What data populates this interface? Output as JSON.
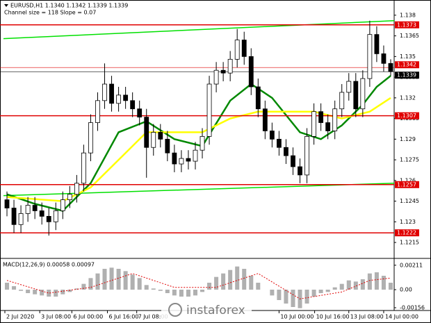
{
  "chart_data": {
    "type": "candlestick",
    "title": "EURUSD,H1  1.1340 1.1342 1.1339 1.1339",
    "subtitle": "Channel size = 118 Slope = 0.07",
    "open": [
      1.1246,
      1.124,
      1.1228,
      1.1236,
      1.1242,
      1.1238,
      1.1234,
      1.123,
      1.1238,
      1.1246,
      1.125,
      1.1258,
      1.128,
      1.1302,
      1.1318,
      1.133,
      1.1316,
      1.1322,
      1.1318,
      1.1312,
      1.1306,
      1.1284,
      1.1295,
      1.129,
      1.128,
      1.1272,
      1.1276,
      1.1274,
      1.1282,
      1.1292,
      1.133,
      1.134,
      1.1338,
      1.1348,
      1.1362,
      1.135,
      1.1328,
      1.1312,
      1.1296,
      1.129,
      1.1284,
      1.1278,
      1.127,
      1.1264,
      1.1292,
      1.131,
      1.1302,
      1.1296,
      1.1312,
      1.1324,
      1.1332,
      1.1312,
      1.1334,
      1.1366,
      1.1352,
      1.1345
    ],
    "high": [
      1.1252,
      1.1246,
      1.1242,
      1.1248,
      1.1248,
      1.1244,
      1.124,
      1.1244,
      1.1252,
      1.1256,
      1.1264,
      1.1286,
      1.1308,
      1.1324,
      1.1345,
      1.1336,
      1.1328,
      1.1328,
      1.1324,
      1.1318,
      1.1312,
      1.1301,
      1.1301,
      1.1296,
      1.1286,
      1.1282,
      1.1282,
      1.1288,
      1.1298,
      1.1336,
      1.1346,
      1.1346,
      1.1354,
      1.137,
      1.1368,
      1.1356,
      1.1334,
      1.1318,
      1.1302,
      1.1296,
      1.129,
      1.1284,
      1.1276,
      1.1298,
      1.1316,
      1.1316,
      1.1308,
      1.1318,
      1.133,
      1.1338,
      1.1338,
      1.134,
      1.1376,
      1.1372,
      1.1358,
      1.1348
    ],
    "low": [
      1.1234,
      1.1222,
      1.1222,
      1.123,
      1.1232,
      1.1228,
      1.122,
      1.1224,
      1.1232,
      1.124,
      1.1244,
      1.1252,
      1.1274,
      1.1296,
      1.1312,
      1.131,
      1.131,
      1.1312,
      1.1306,
      1.13,
      1.1262,
      1.1278,
      1.1284,
      1.1274,
      1.1266,
      1.1266,
      1.1268,
      1.1268,
      1.1276,
      1.1286,
      1.1324,
      1.1332,
      1.1332,
      1.1342,
      1.1344,
      1.1322,
      1.1306,
      1.129,
      1.1284,
      1.1278,
      1.1272,
      1.1264,
      1.1258,
      1.1258,
      1.1286,
      1.1296,
      1.129,
      1.129,
      1.1306,
      1.1318,
      1.1306,
      1.1306,
      1.1328,
      1.1346,
      1.1339,
      1.1336
    ],
    "close": [
      1.124,
      1.1228,
      1.1236,
      1.1242,
      1.1238,
      1.1234,
      1.123,
      1.1238,
      1.1246,
      1.125,
      1.1258,
      1.128,
      1.1302,
      1.1318,
      1.133,
      1.1316,
      1.1322,
      1.1318,
      1.1312,
      1.1306,
      1.1284,
      1.1295,
      1.129,
      1.128,
      1.1272,
      1.1276,
      1.1274,
      1.1282,
      1.1292,
      1.133,
      1.134,
      1.1338,
      1.1348,
      1.1362,
      1.135,
      1.1328,
      1.1312,
      1.1296,
      1.129,
      1.1284,
      1.1278,
      1.127,
      1.1264,
      1.1292,
      1.131,
      1.1302,
      1.1296,
      1.1312,
      1.1324,
      1.1332,
      1.1312,
      1.1334,
      1.1366,
      1.1352,
      1.1345,
      1.1339
    ],
    "xlim": [
      -0.5,
      55.5
    ],
    "xticks": [
      {
        "value": -0.3,
        "label": "2 Jul 2020"
      },
      {
        "value": 4.7,
        "label": "3 Jul 08:00"
      },
      {
        "value": 9.3,
        "label": "6 Jul 00:00"
      },
      {
        "value": 14.4,
        "label": "6 Jul 16:00"
      },
      {
        "value": 18.6,
        "label": "7 Jul 08:00"
      },
      {
        "value": 39,
        "label": "10 Jul 00:00"
      },
      {
        "value": 44.1,
        "label": "10 Jul 16:00"
      },
      {
        "value": 49,
        "label": "13 Jul 08:00"
      },
      {
        "value": 54,
        "label": "14 Jul 00:00"
      }
    ],
    "ylim": [
      1.1211,
      1.1387
    ],
    "yticks": [
      1.1215,
      1.123,
      1.1245,
      1.126,
      1.1275,
      1.129,
      1.1305,
      1.132,
      1.1335,
      1.135,
      1.1365,
      1.138
    ],
    "levels": [
      1.1373,
      1.1307,
      1.1257,
      1.1222
    ],
    "level_color": "#e00000",
    "price_lines": [
      {
        "value": 1.1342,
        "color": "#e00000"
      },
      {
        "value": 1.1339,
        "color": "#000000"
      }
    ],
    "overlays": [
      {
        "color": "#00e000",
        "x": [
          -0.5,
          55.5
        ],
        "values": [
          1.1363,
          1.1376
        ]
      },
      {
        "color": "#00e000",
        "x": [
          -0.5,
          55.5
        ],
        "values": [
          1.1249,
          1.1258
        ]
      },
      {
        "color": "#008800",
        "x": [
          0,
          4,
          8,
          12,
          16,
          20,
          24,
          28,
          32,
          35,
          38,
          42,
          45,
          48,
          51,
          53,
          55
        ],
        "values": [
          1.125,
          1.1243,
          1.1238,
          1.1258,
          1.1295,
          1.1303,
          1.129,
          1.1285,
          1.1318,
          1.133,
          1.132,
          1.1295,
          1.129,
          1.13,
          1.1315,
          1.1328,
          1.1336
        ]
      },
      {
        "color": "#ffff00",
        "x": [
          0,
          8,
          12,
          16,
          20,
          24,
          28,
          32,
          36,
          40,
          44,
          48,
          52,
          55
        ],
        "values": [
          1.1248,
          1.1245,
          1.1255,
          1.1275,
          1.1295,
          1.1295,
          1.1295,
          1.1305,
          1.131,
          1.131,
          1.131,
          1.1305,
          1.131,
          1.132
        ]
      }
    ],
    "macd": {
      "label": "MACD(12,26,9) 0.00058 0.00097",
      "ylim": [
        -0.0018,
        0.0024
      ],
      "yticks": [
        0.00211,
        {
          "value": 0,
          "label": "0.00"
        },
        -0.00156
      ],
      "color": "#b0b0b0",
      "values": [
        0.0006,
        0.0003,
        -0.0001,
        -0.0003,
        -0.0004,
        -0.0005,
        -0.0006,
        -0.0006,
        -0.0004,
        -0.0002,
        0.0001,
        0.0005,
        0.001,
        0.0014,
        0.0018,
        0.0019,
        0.0018,
        0.0016,
        0.0013,
        0.001,
        0.0004,
        0.0001,
        -0.0001,
        -0.0003,
        -0.0005,
        -0.0006,
        -0.0006,
        -0.0005,
        -0.0002,
        0.0006,
        0.0011,
        0.0014,
        0.0017,
        0.002,
        0.0018,
        0.0012,
        0.0006,
        0.0,
        -0.0005,
        -0.0009,
        -0.0012,
        -0.0015,
        -0.0016,
        -0.0012,
        -0.0006,
        -0.0003,
        -0.0002,
        0.0002,
        0.0005,
        0.0008,
        0.0007,
        0.0009,
        0.0014,
        0.0015,
        0.0012,
        0.0006
      ],
      "signal": {
        "color": "#e00000",
        "x": [
          0,
          6,
          12,
          18,
          24,
          30,
          36,
          42,
          48,
          52,
          55
        ],
        "values": [
          0.0008,
          -0.0003,
          0.0002,
          0.0014,
          0.0002,
          0.0002,
          0.0014,
          -0.0008,
          -0.0002,
          0.0008,
          0.001
        ]
      }
    },
    "watermark": "instaforex"
  }
}
